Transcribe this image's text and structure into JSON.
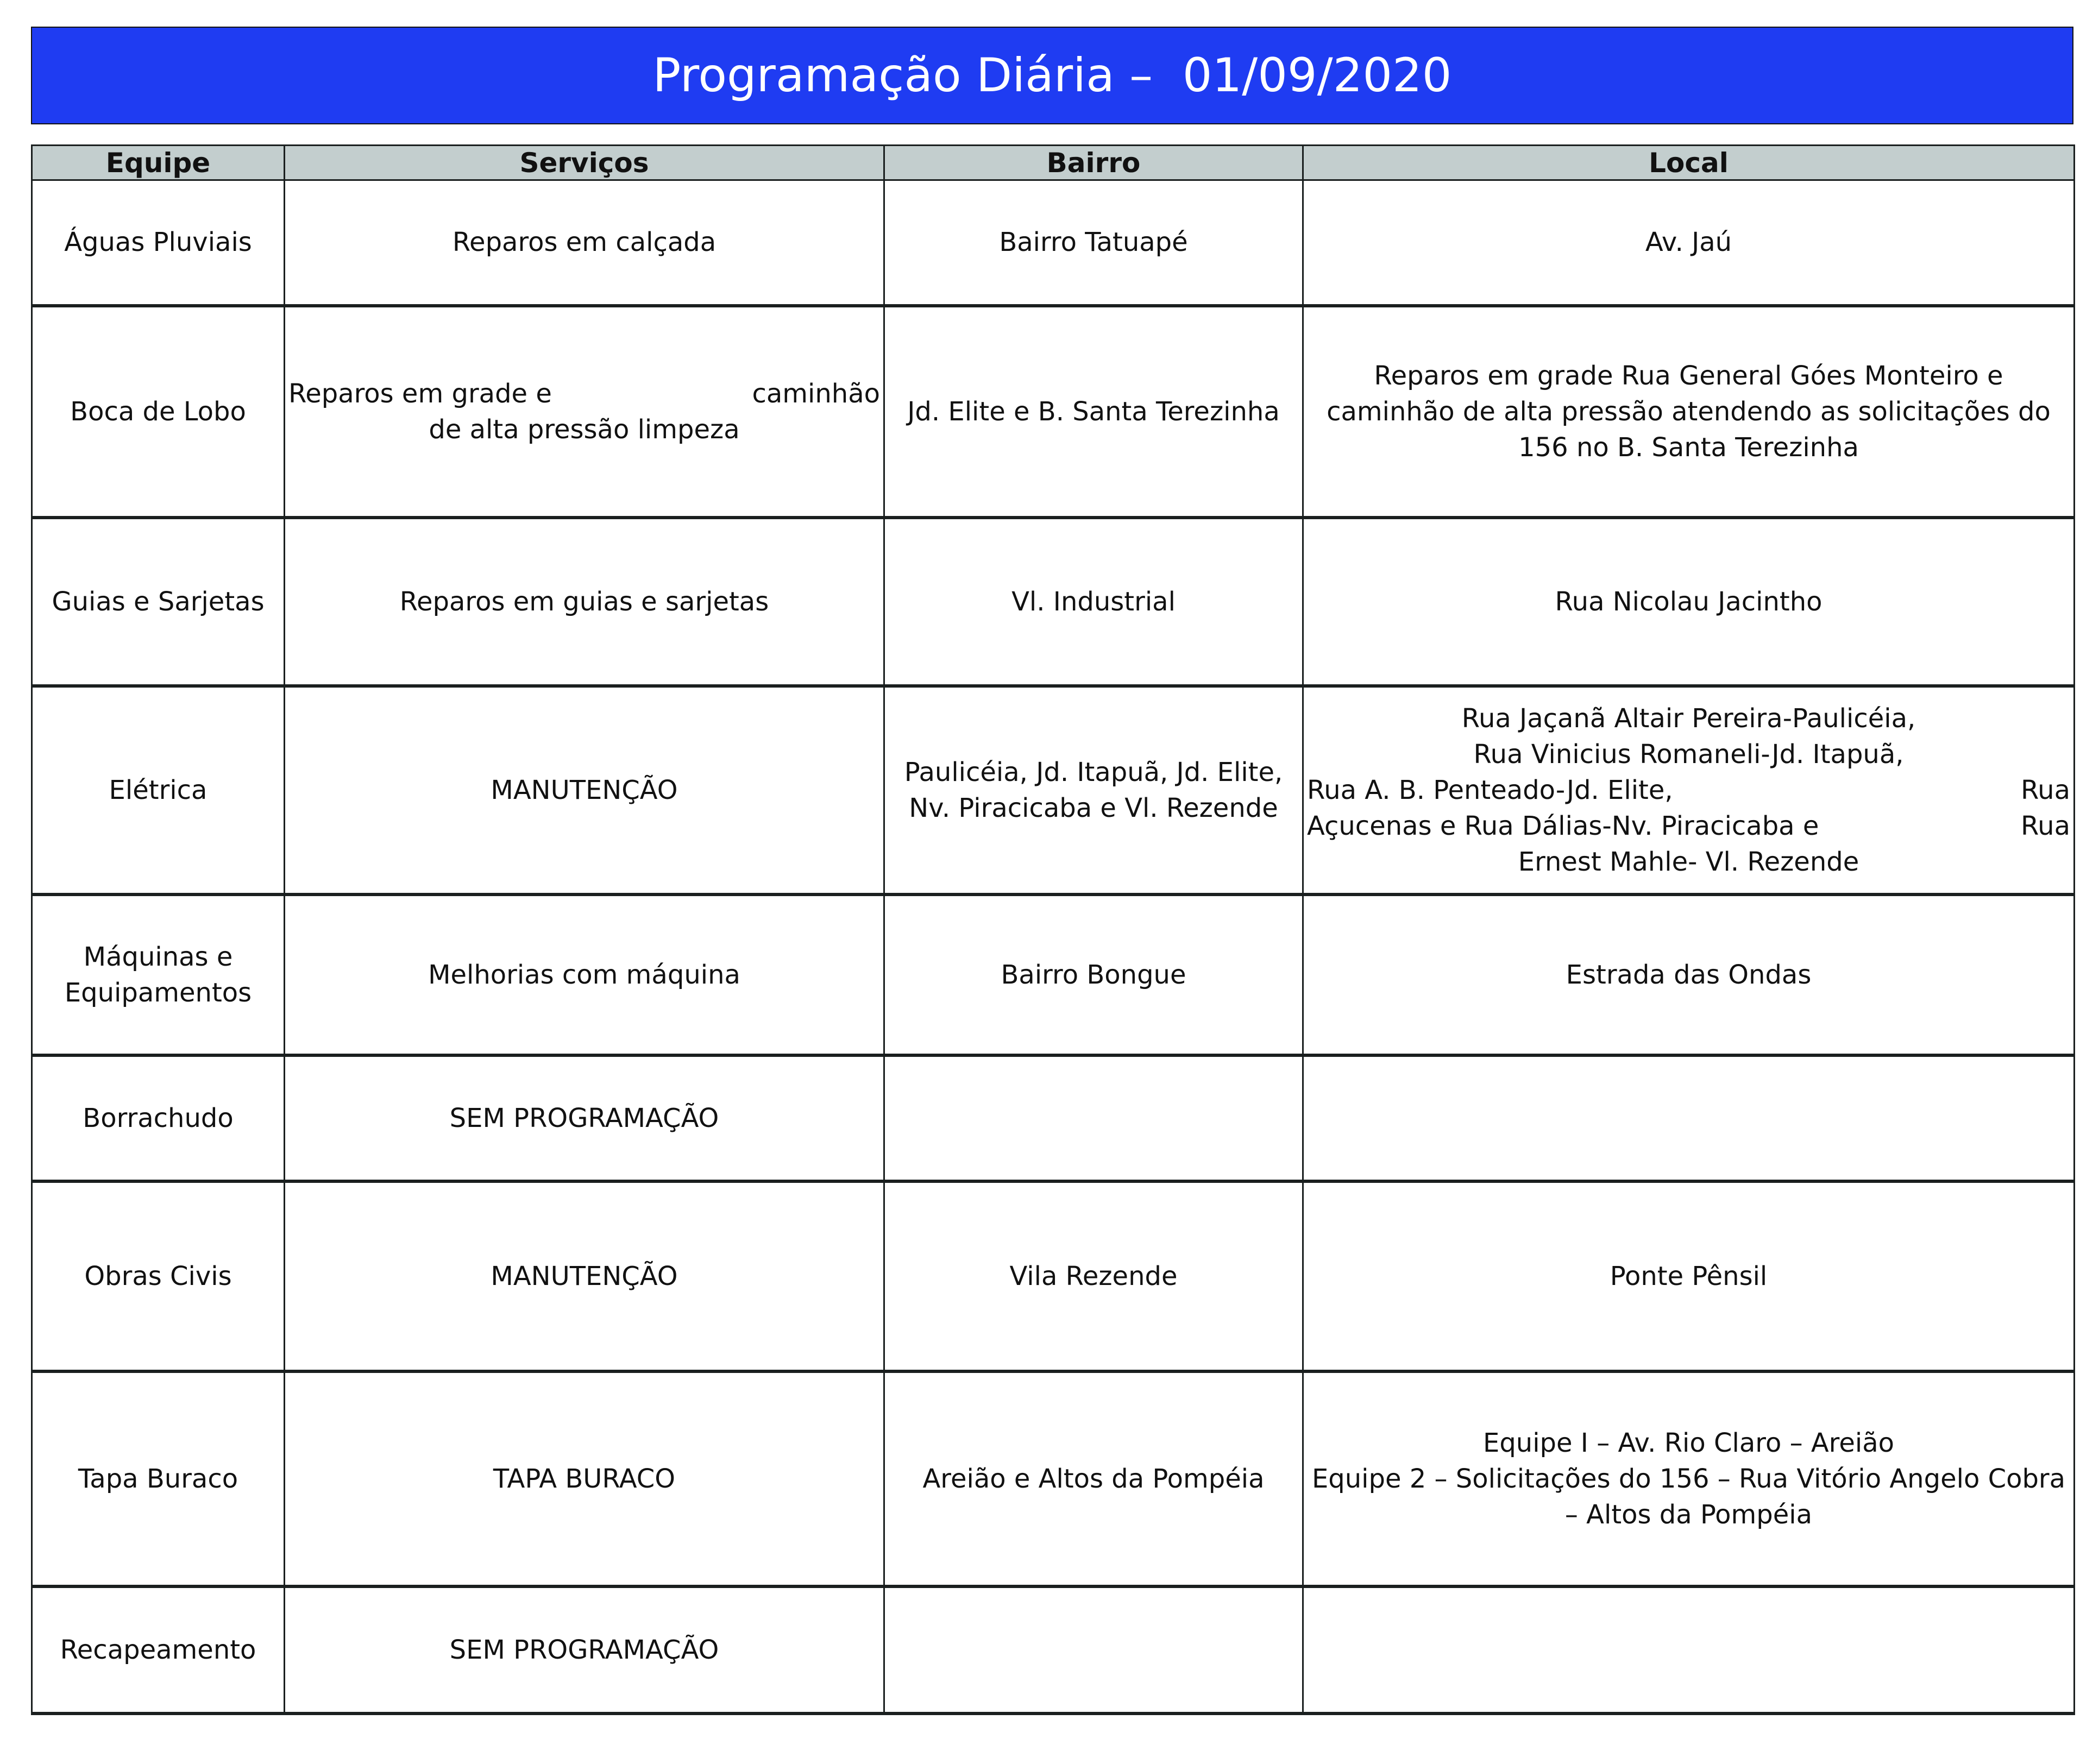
{
  "title": "Programação Diária –  01/09/2020",
  "colors": {
    "banner": "#1f3cf2",
    "header_bg": "#c3cece"
  },
  "columns": [
    "Equipe",
    "Serviços",
    "Bairro",
    "Local"
  ],
  "rows": [
    {
      "equipe": [
        "Águas Pluviais"
      ],
      "servicos": [
        "Reparos em calçada"
      ],
      "bairro": [
        "Bairro Tatuapé"
      ],
      "local": [
        "Av. Jaú"
      ]
    },
    {
      "equipe": [
        "Boca de Lobo"
      ],
      "servicos": [
        {
          "l": "Reparos em grade e",
          "r": "caminhão"
        },
        "de alta pressão limpeza"
      ],
      "bairro": [
        "Jd. Elite e B. Santa Terezinha"
      ],
      "local": [
        "Reparos em grade Rua General Góes Monteiro e",
        "caminhão de alta pressão atendendo as solicitações do",
        "156 no B. Santa Terezinha"
      ]
    },
    {
      "equipe": [
        "Guias e Sarjetas"
      ],
      "servicos": [
        "Reparos em guias e sarjetas"
      ],
      "bairro": [
        "Vl. Industrial"
      ],
      "local": [
        "Rua Nicolau Jacintho"
      ]
    },
    {
      "equipe": [
        "Elétrica"
      ],
      "servicos": [
        "MANUTENÇÃO"
      ],
      "bairro": [
        "Paulicéia, Jd. Itapuã, Jd. Elite,",
        "Nv. Piracicaba e Vl. Rezende"
      ],
      "local": [
        "Rua Jaçanã Altair Pereira-Paulicéia,",
        "Rua Vinicius Romaneli-Jd. Itapuã,",
        {
          "l": "Rua A. B. Penteado-Jd. Elite,",
          "r": "Rua"
        },
        {
          "l": "Açucenas e Rua Dálias-Nv. Piracicaba e",
          "r": "Rua"
        },
        "Ernest Mahle- Vl. Rezende"
      ]
    },
    {
      "equipe": [
        "Máquinas e",
        "Equipamentos"
      ],
      "servicos": [
        "Melhorias com máquina"
      ],
      "bairro": [
        "Bairro Bongue"
      ],
      "local": [
        "Estrada das Ondas"
      ]
    },
    {
      "equipe": [
        "Borrachudo"
      ],
      "servicos": [
        "SEM PROGRAMAÇÃO"
      ],
      "bairro": [],
      "local": []
    },
    {
      "equipe": [
        "Obras Civis"
      ],
      "servicos": [
        "MANUTENÇÃO"
      ],
      "bairro": [
        "Vila Rezende"
      ],
      "local": [
        "Ponte Pênsil"
      ]
    },
    {
      "equipe": [
        "Tapa Buraco"
      ],
      "servicos": [
        "TAPA BURACO"
      ],
      "bairro": [
        "Areião e Altos da Pompéia"
      ],
      "local": [
        "Equipe I – Av. Rio Claro – Areião",
        "Equipe 2 – Solicitações do 156 – Rua Vitório Angelo Cobra",
        "– Altos da Pompéia"
      ]
    },
    {
      "equipe": [
        "Recapeamento"
      ],
      "servicos": [
        "SEM PROGRAMAÇÃO"
      ],
      "bairro": [],
      "local": []
    }
  ]
}
